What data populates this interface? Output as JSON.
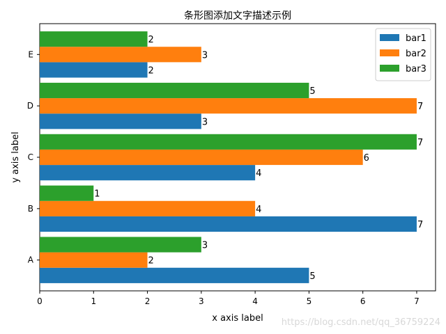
{
  "chart_data": {
    "type": "bar",
    "orientation": "horizontal",
    "title": "条形图添加文字描述示例",
    "xlabel": "x axis label",
    "ylabel": "y axis label",
    "categories": [
      "A",
      "B",
      "C",
      "D",
      "E"
    ],
    "xlim": [
      0,
      7.35
    ],
    "x_ticks": [
      0,
      1,
      2,
      3,
      4,
      5,
      6,
      7
    ],
    "grid": false,
    "legend_position": "top-right",
    "series": [
      {
        "name": "bar1",
        "color": "#1f77b4",
        "values": [
          5,
          7,
          4,
          3,
          2
        ]
      },
      {
        "name": "bar2",
        "color": "#ff7f0e",
        "values": [
          2,
          4,
          6,
          7,
          3
        ]
      },
      {
        "name": "bar3",
        "color": "#2ca02c",
        "values": [
          3,
          1,
          7,
          5,
          2
        ]
      }
    ]
  },
  "watermark": "https://blog.csdn.net/qq_36759224"
}
